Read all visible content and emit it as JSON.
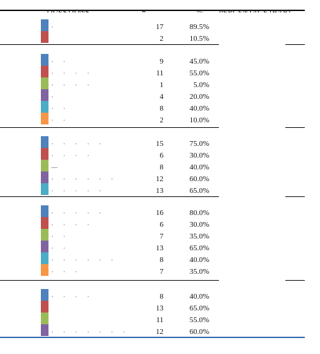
{
  "colors": {
    "blue": "#4f81bd",
    "red": "#c0504d",
    "green": "#9bbb59",
    "purple": "#8064a2",
    "teal": "#4bacc6",
    "orange": "#f79646",
    "rule": "#111111",
    "bottom_rule": "#3a6fb0"
  },
  "header": {
    "col1": "QUESTIONS",
    "col2": "n",
    "col3": "%",
    "col4": "PERCENTAGE (BAR)"
  },
  "groups": [
    {
      "rows": [
        {
          "color": "blue",
          "label": "·",
          "n": "17",
          "pct": "89.5%"
        },
        {
          "color": "red",
          "label": "",
          "n": "2",
          "pct": "10.5%"
        }
      ]
    },
    {
      "rows": [
        {
          "color": "blue",
          "label": "·   ·",
          "n": "9",
          "pct": "45.0%"
        },
        {
          "color": "red",
          "label": "· ·   ·  ·",
          "n": "11",
          "pct": "55.0%"
        },
        {
          "color": "green",
          "label": "·   ·  ·  ·",
          "n": "1",
          "pct": "5.0%"
        },
        {
          "color": "purple",
          "label": "·",
          "n": "4",
          "pct": "20.0%"
        },
        {
          "color": "teal",
          "label": "·   ·",
          "n": "8",
          "pct": "40.0%"
        },
        {
          "color": "orange",
          "label": "·  ·",
          "n": "2",
          "pct": "10.0%"
        }
      ]
    },
    {
      "rows": [
        {
          "color": "blue",
          "label": "·  ·  ·  ·  ·",
          "n": "15",
          "pct": "75.0%"
        },
        {
          "color": "red",
          "label": "·  ·  ·  ·",
          "n": "6",
          "pct": "30.0%"
        },
        {
          "color": "green",
          "label": "—",
          "n": "8",
          "pct": "40.0%"
        },
        {
          "color": "purple",
          "label": "·  ·  ·  ·  ·  ·",
          "n": "12",
          "pct": "60.0%"
        },
        {
          "color": "teal",
          "label": "·  ·  ·  ·  ·",
          "n": "13",
          "pct": "65.0%"
        }
      ]
    },
    {
      "rows": [
        {
          "color": "blue",
          "label": "·  ·  ·  ·  ·",
          "n": "16",
          "pct": "80.0%"
        },
        {
          "color": "red",
          "label": "·  ·  ·  ·",
          "n": "6",
          "pct": "30.0%"
        },
        {
          "color": "green",
          "label": "·  ·",
          "n": "7",
          "pct": "35.0%"
        },
        {
          "color": "purple",
          "label": "·  ·",
          "n": "13",
          "pct": "65.0%"
        },
        {
          "color": "teal",
          "label": "·  ·  ·  ·  ·  ·",
          "n": "8",
          "pct": "40.0%"
        },
        {
          "color": "orange",
          "label": "·  ·  ·",
          "n": "7",
          "pct": "35.0%"
        }
      ]
    },
    {
      "rows": [
        {
          "color": "blue",
          "label": "·  ·  ·  ·",
          "n": "8",
          "pct": "40.0%"
        },
        {
          "color": "red",
          "label": "",
          "n": "13",
          "pct": "65.0%"
        },
        {
          "color": "green",
          "label": "",
          "n": "11",
          "pct": "55.0%"
        },
        {
          "color": "purple",
          "label": "·  ·  ·  ·  ·  ·  ·",
          "n": "12",
          "pct": "60.0%"
        }
      ]
    }
  ]
}
